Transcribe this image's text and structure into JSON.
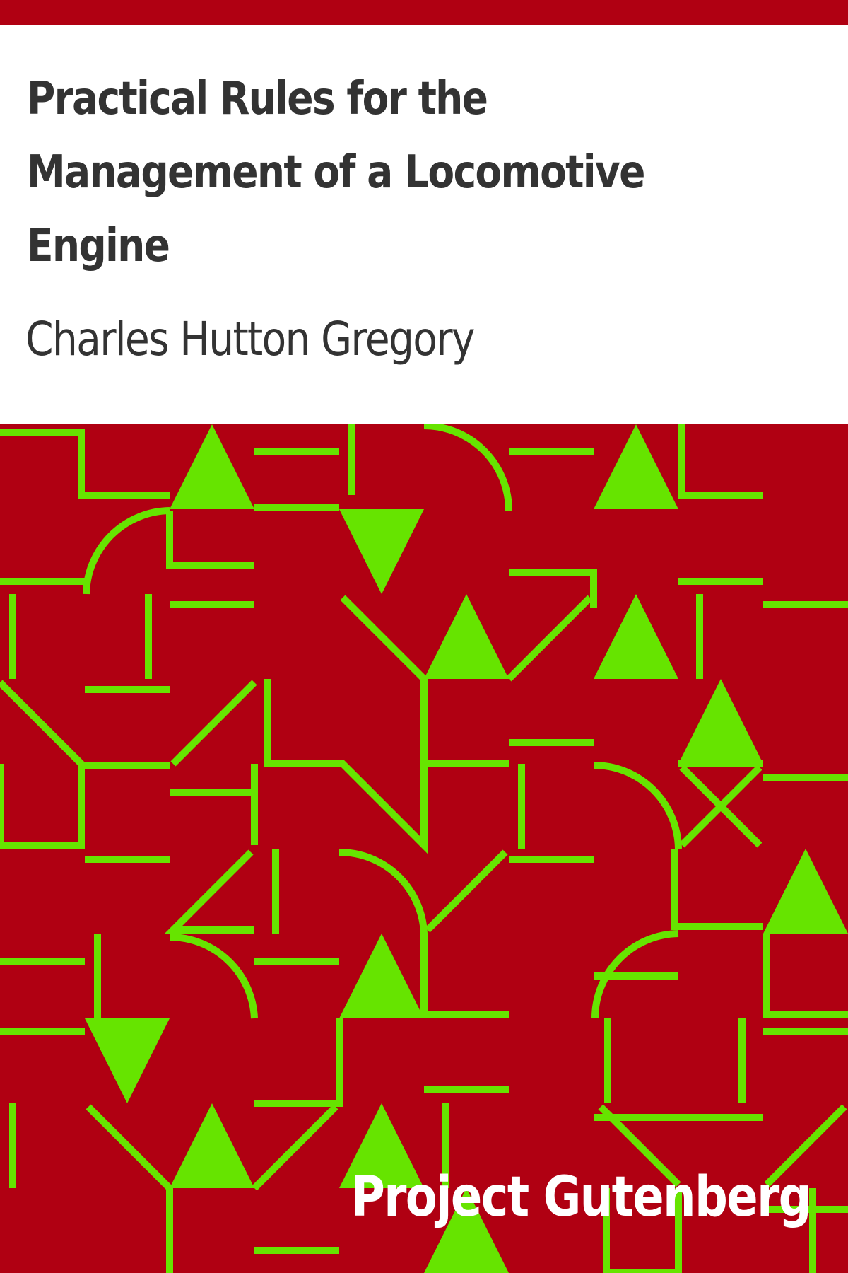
{
  "book": {
    "title": "Practical Rules for the Management of a Locomotive Engine",
    "author": "Charles Hutton Gregory"
  },
  "publisher": {
    "name": "Project Gutenberg"
  },
  "colors": {
    "background": "#ffffff",
    "accent_red": "#b00012",
    "pattern_green": "#66e400",
    "text_dark": "#333333",
    "brand_text": "#ffffff"
  }
}
